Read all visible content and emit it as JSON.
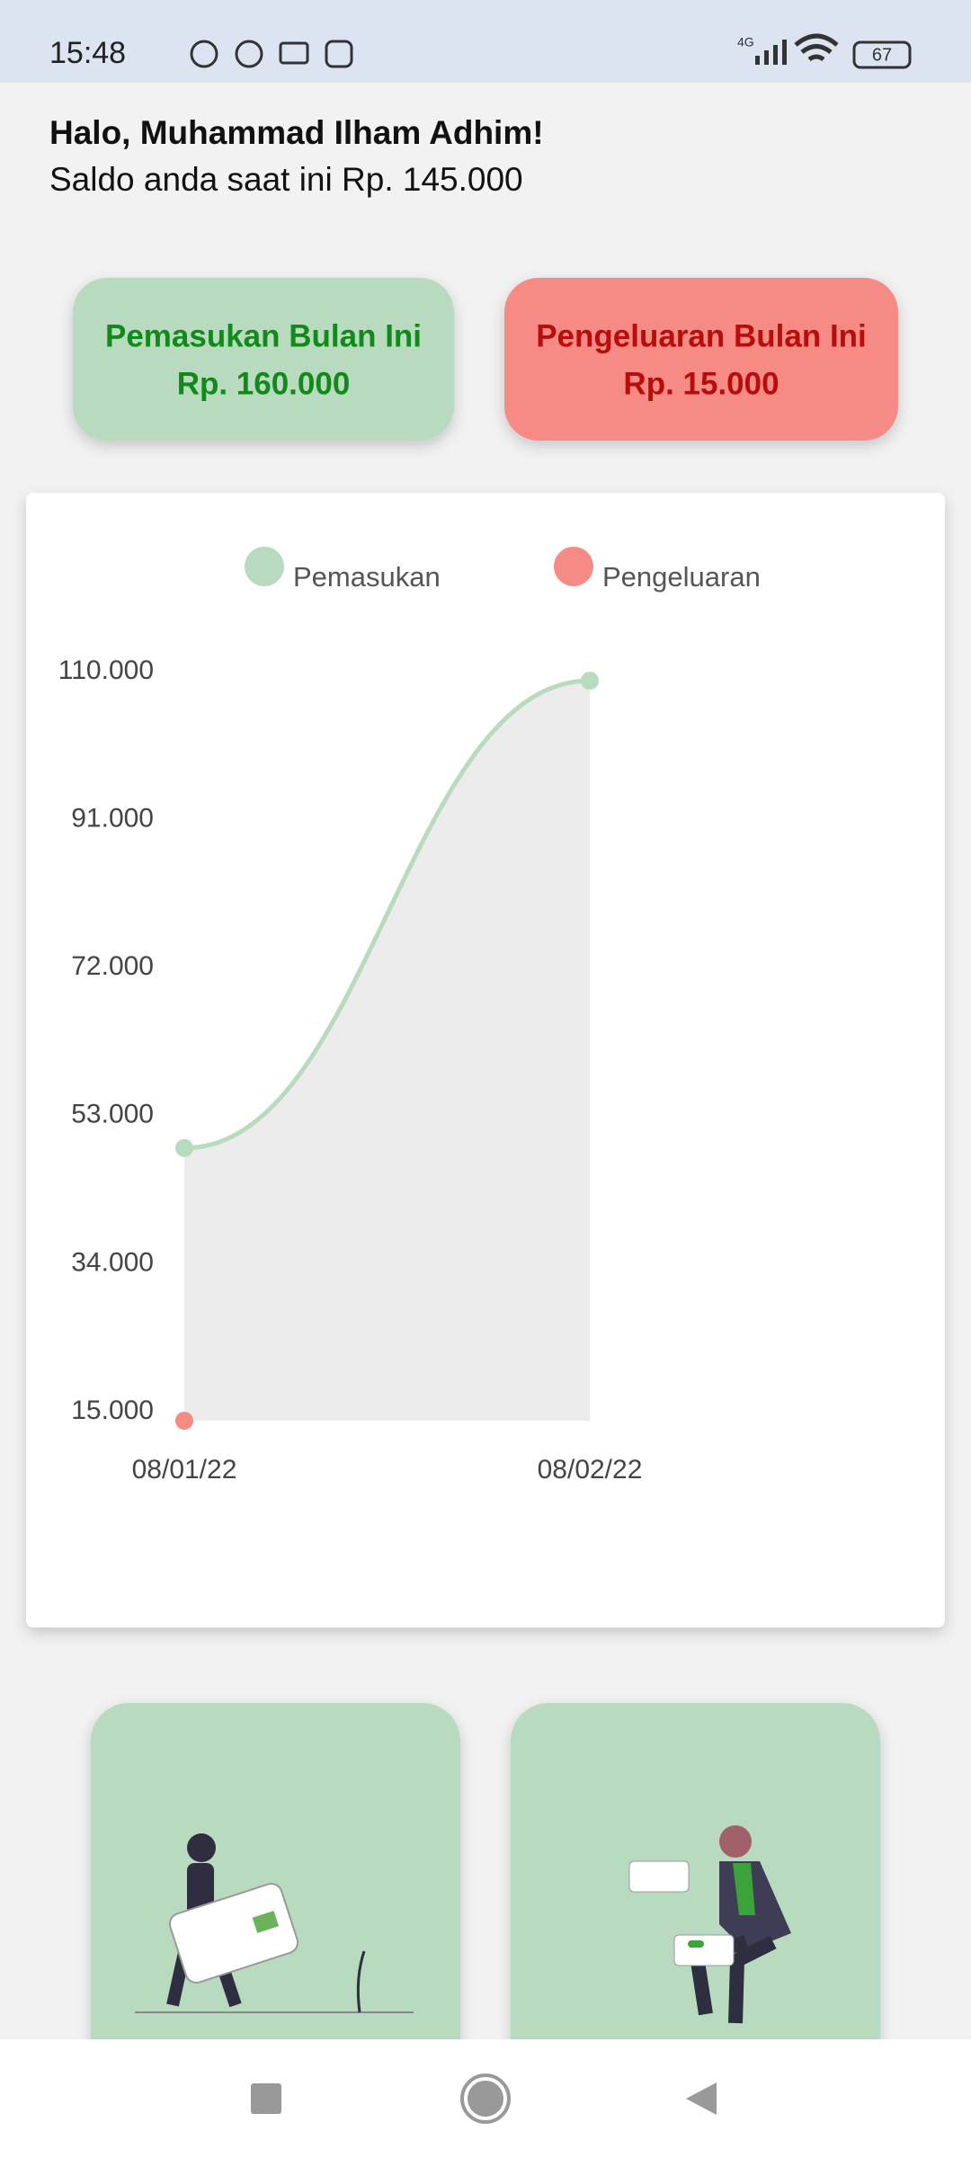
{
  "status_bar": {
    "time": "15:48",
    "network": "4G",
    "battery": "67"
  },
  "header": {
    "greeting": "Halo, Muhammad Ilham Adhim!",
    "balance": "Saldo anda saat ini Rp. 145.000"
  },
  "cards": [
    {
      "title": "Pemasukan Bulan Ini",
      "amount": "Rp. 160.000"
    },
    {
      "title": "Pengeluaran Bulan Ini",
      "amount": "Rp. 15.000"
    }
  ],
  "chart_data": {
    "type": "line",
    "categories": [
      "08/01/22",
      "08/02/22"
    ],
    "series": [
      {
        "name": "Pemasukan",
        "color": "#b8dbc0",
        "values": [
          50000,
          110000
        ]
      },
      {
        "name": "Pengeluaran",
        "color": "#f68a84",
        "values": [
          15000,
          null
        ]
      }
    ],
    "ylim": [
      15000,
      110000
    ],
    "yticks": [
      {
        "value": 15000,
        "label": "15.000"
      },
      {
        "value": 34000,
        "label": "34.000"
      },
      {
        "value": 53000,
        "label": "53.000"
      },
      {
        "value": 72000,
        "label": "72.000"
      },
      {
        "value": 91000,
        "label": "91.000"
      },
      {
        "value": 110000,
        "label": "110.000"
      }
    ],
    "legend": "top",
    "fill_area": true,
    "area_color": "#ececec"
  }
}
